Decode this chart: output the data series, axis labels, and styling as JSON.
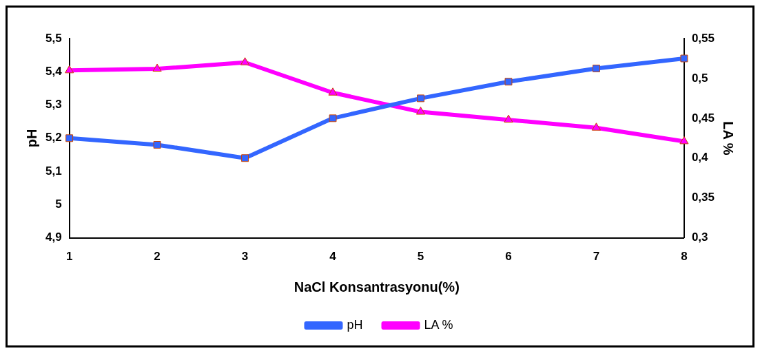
{
  "chart_data": {
    "type": "line",
    "xlabel": "NaCl Konsantrasyonu(%)",
    "ylabel": "pH",
    "y2label": "LA %",
    "categories": [
      "1",
      "2",
      "3",
      "4",
      "5",
      "6",
      "7",
      "8"
    ],
    "series": [
      {
        "name": "pH",
        "color": "#3366ff",
        "marker": "square",
        "values": [
          5.2,
          5.18,
          5.14,
          5.26,
          5.32,
          5.37,
          5.41,
          5.44
        ]
      },
      {
        "name": "LA %",
        "color": "#ff00ff",
        "marker": "triangle",
        "axis": "y2",
        "values": [
          0.51,
          0.512,
          0.52,
          0.482,
          0.458,
          0.448,
          0.438,
          0.421
        ]
      }
    ],
    "ylim": [
      4.9,
      5.5
    ],
    "yticks": [
      {
        "value": 4.9,
        "label": "4,9"
      },
      {
        "value": 5,
        "label": "5"
      },
      {
        "value": 5.1,
        "label": "5,1"
      },
      {
        "value": 5.2,
        "label": "5,2"
      },
      {
        "value": 5.3,
        "label": "5,3"
      },
      {
        "value": 5.4,
        "label": "5,4"
      },
      {
        "value": 5.5,
        "label": "5,5"
      }
    ],
    "y2lim": [
      0.3,
      0.55
    ],
    "y2ticks": [
      {
        "value": 0.3,
        "label": "0,3"
      },
      {
        "value": 0.35,
        "label": "0,35"
      },
      {
        "value": 0.4,
        "label": "0,4"
      },
      {
        "value": 0.45,
        "label": "0,45"
      },
      {
        "value": 0.5,
        "label": "0,5"
      },
      {
        "value": 0.55,
        "label": "0,55"
      }
    ],
    "grid": false,
    "legend": "bottom",
    "line_style": "solid"
  }
}
